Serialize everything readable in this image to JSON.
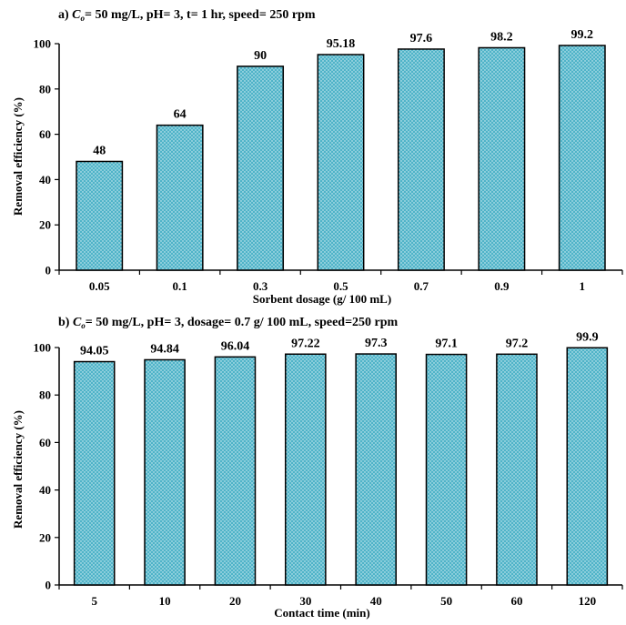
{
  "chart_data": [
    {
      "type": "bar",
      "title_prefix": "a) ",
      "title_var": "C",
      "title_sub": "o",
      "title_rest": "= 50 mg/L, pH= 3, t= 1 hr, speed= 250 rpm",
      "xlabel": "Sorbent dosage (g/ 100 mL)",
      "ylabel": "Removal efficiency (%)",
      "ylim": [
        0,
        100
      ],
      "yticks": [
        0,
        20,
        40,
        60,
        80,
        100
      ],
      "categories": [
        "0.05",
        "0.1",
        "0.3",
        "0.5",
        "0.7",
        "0.9",
        "1"
      ],
      "values": [
        48,
        64,
        90,
        95.18,
        97.6,
        98.2,
        99.2
      ],
      "value_labels": [
        "48",
        "64",
        "90",
        "95.18",
        "97.6",
        "98.2",
        "99.2"
      ],
      "bar_color": "#4fb3c8",
      "grid": false,
      "legend": "none"
    },
    {
      "type": "bar",
      "title_prefix": "b) ",
      "title_var": "C",
      "title_sub": "o",
      "title_rest": "= 50 mg/L, pH= 3, dosage= 0.7 g/ 100 mL, speed=250 rpm",
      "xlabel": "Contact time (min)",
      "ylabel": "Removal efficiency (%)",
      "ylim": [
        0,
        100
      ],
      "yticks": [
        0,
        20,
        40,
        60,
        80,
        100
      ],
      "categories": [
        "5",
        "10",
        "20",
        "30",
        "40",
        "50",
        "60",
        "120"
      ],
      "values": [
        94.05,
        94.84,
        96.04,
        97.22,
        97.3,
        97.1,
        97.2,
        99.9
      ],
      "value_labels": [
        "94.05",
        "94.84",
        "96.04",
        "97.22",
        "97.3",
        "97.1",
        "97.2",
        "99.9"
      ],
      "bar_color": "#4fb3c8",
      "grid": false,
      "legend": "none"
    }
  ]
}
